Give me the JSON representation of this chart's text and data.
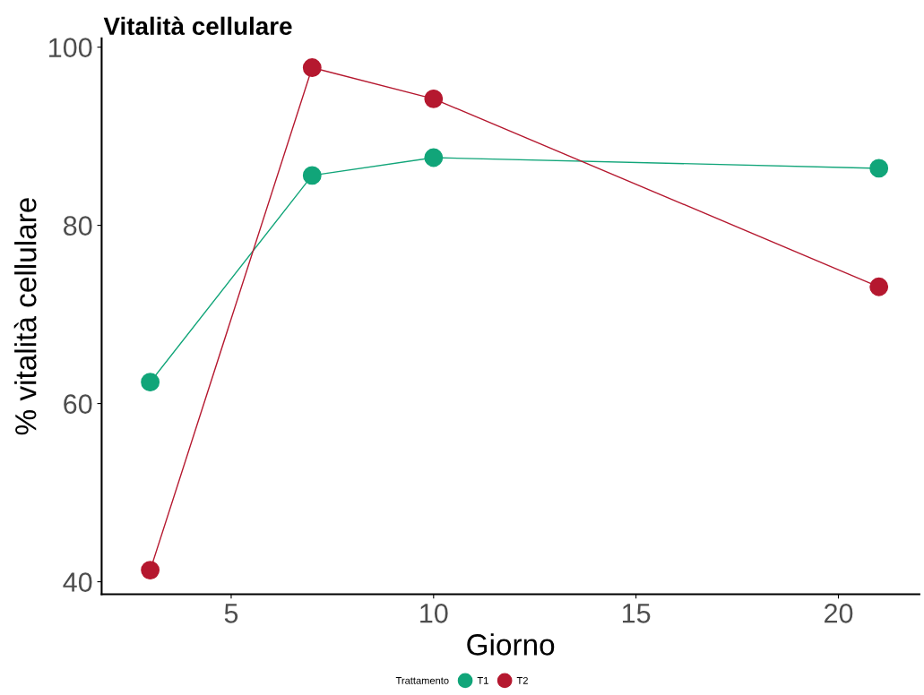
{
  "chart_data": {
    "type": "line",
    "title": "Vitalità cellulare",
    "xlabel": "Giorno",
    "ylabel": "% vitalità cellulare",
    "legend_title": "Trattamento",
    "x": [
      3,
      7,
      10,
      21
    ],
    "series": [
      {
        "name": "T1",
        "color": "#11a579",
        "values": [
          62.4,
          85.6,
          87.6,
          86.4
        ]
      },
      {
        "name": "T2",
        "color": "#b5182f",
        "values": [
          41.3,
          97.7,
          94.2,
          73.1
        ]
      }
    ],
    "xlim": [
      1.8,
      22
    ],
    "xticks": [
      5,
      10,
      15,
      20
    ],
    "ylim": [
      38.6,
      101
    ],
    "yticks": [
      40,
      60,
      80,
      100
    ],
    "grid": false,
    "legend": "bottom",
    "marker": "circle",
    "line_style": "solid"
  }
}
